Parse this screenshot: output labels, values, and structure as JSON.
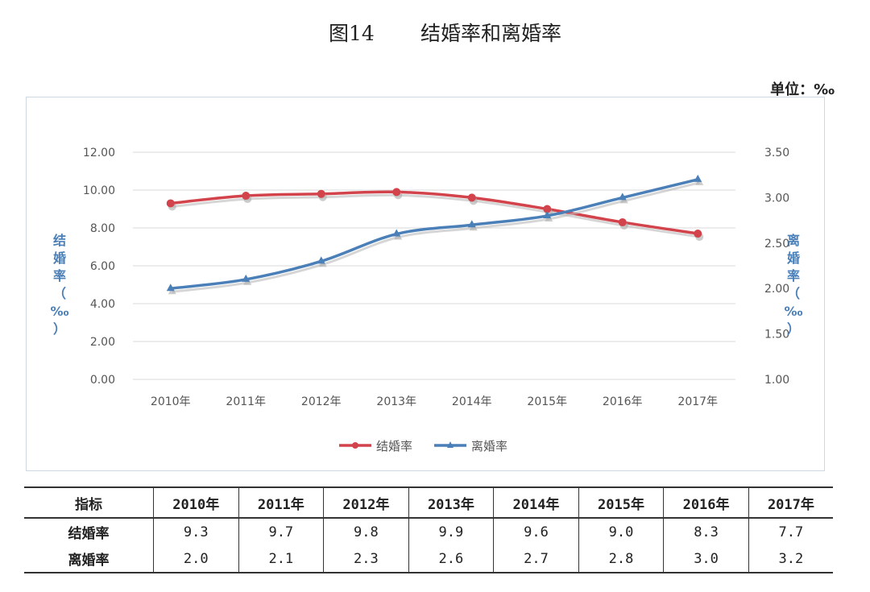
{
  "figure": {
    "number": "图14",
    "title": "结婚率和离婚率",
    "unit": "单位：‰"
  },
  "chart_data": {
    "type": "line",
    "categories": [
      "2010年",
      "2011年",
      "2012年",
      "2013年",
      "2014年",
      "2015年",
      "2016年",
      "2017年"
    ],
    "series": [
      {
        "name": "结婚率",
        "axis": "left",
        "color": "#d2434b",
        "marker": "circle",
        "values": [
          9.3,
          9.7,
          9.8,
          9.9,
          9.6,
          9.0,
          8.3,
          7.7
        ]
      },
      {
        "name": "离婚率",
        "axis": "right",
        "color": "#4a7fb8",
        "marker": "triangle",
        "values": [
          2.0,
          2.1,
          2.3,
          2.6,
          2.7,
          2.8,
          3.0,
          3.2
        ]
      }
    ],
    "ylabel_left": "结婚率（‰）",
    "ylabel_right": "离婚率（‰）",
    "ylim_left": [
      0,
      12
    ],
    "yticks_left": [
      "0.00",
      "2.00",
      "4.00",
      "6.00",
      "8.00",
      "10.00",
      "12.00"
    ],
    "ylim_right": [
      1,
      3.5
    ],
    "yticks_right": [
      "1.00",
      "1.50",
      "2.00",
      "2.50",
      "3.00",
      "3.50"
    ],
    "grid": true,
    "legend_position": "bottom"
  },
  "table": {
    "header": [
      "指标",
      "2010年",
      "2011年",
      "2012年",
      "2013年",
      "2014年",
      "2015年",
      "2016年",
      "2017年"
    ],
    "rows": [
      {
        "label": "结婚率",
        "values": [
          "9.3",
          "9.7",
          "9.8",
          "9.9",
          "9.6",
          "9.0",
          "8.3",
          "7.7"
        ]
      },
      {
        "label": "离婚率",
        "values": [
          "2.0",
          "2.1",
          "2.3",
          "2.6",
          "2.7",
          "2.8",
          "3.0",
          "3.2"
        ]
      }
    ]
  }
}
